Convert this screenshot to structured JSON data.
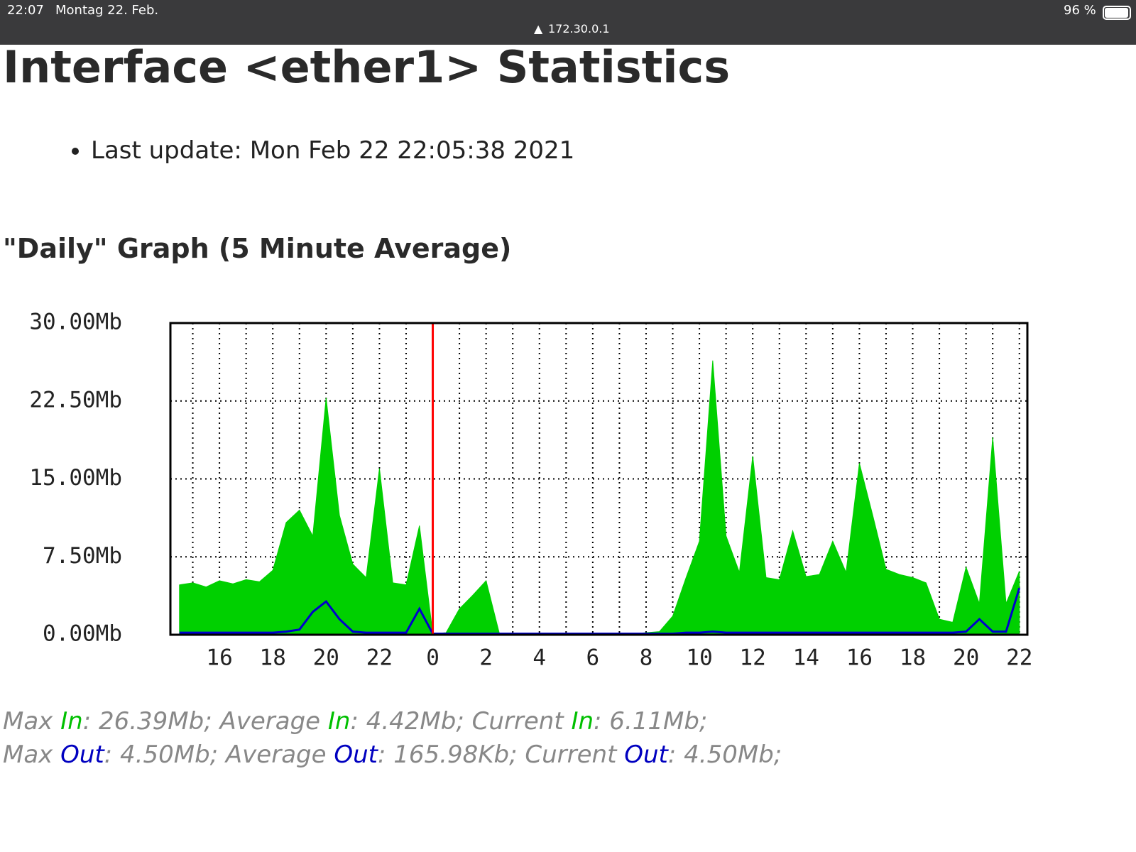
{
  "status_bar": {
    "time": "22:07",
    "date": "Montag 22. Feb.",
    "url": "172.30.0.1",
    "battery": "96 %"
  },
  "title": "Interface <ether1> Statistics",
  "last_update": "Last update: Mon Feb 22 22:05:38 2021",
  "graph_heading": "\"Daily\" Graph (5 Minute Average)",
  "chart_data": {
    "type": "area",
    "x": [
      14.5,
      15,
      15.5,
      16,
      16.5,
      17,
      17.5,
      18,
      18.5,
      19,
      19.5,
      20,
      20.5,
      21,
      21.5,
      22,
      22.5,
      23,
      23.5,
      24,
      24.5,
      25,
      25.5,
      26,
      26.5,
      27,
      27.5,
      28,
      28.5,
      29,
      29.5,
      30,
      30.5,
      31,
      31.5,
      32,
      32.5,
      33,
      33.5,
      34,
      34.5,
      35,
      35.5,
      36,
      36.5,
      37,
      37.5,
      38,
      38.5,
      39,
      39.5,
      40,
      40.5,
      41,
      41.5,
      42,
      42.5,
      43,
      43.5,
      44,
      44.5,
      45,
      45.5,
      46
    ],
    "series": [
      {
        "name": "In",
        "color": "#00d000",
        "values": [
          4.8,
          5.0,
          4.6,
          5.2,
          4.9,
          5.3,
          5.1,
          6.2,
          10.8,
          12.0,
          9.5,
          22.8,
          11.5,
          6.8,
          5.5,
          16.0,
          5.0,
          4.8,
          10.5,
          0.1,
          0.2,
          2.5,
          3.8,
          5.2,
          0.1,
          0.1,
          0.1,
          0.1,
          0.1,
          0.1,
          0.1,
          0.1,
          0.1,
          0.1,
          0.1,
          0.2,
          0.3,
          1.8,
          5.5,
          9.0,
          26.39,
          9.5,
          6.0,
          17.2,
          5.5,
          5.3,
          10.0,
          5.6,
          5.8,
          9.0,
          6.0,
          16.5,
          11.5,
          6.3,
          5.8,
          5.5,
          5.0,
          1.5,
          1.2,
          6.5,
          3.0,
          19.0,
          3.0,
          6.11
        ]
      },
      {
        "name": "Out",
        "color": "#0000cc",
        "values": [
          0.2,
          0.2,
          0.2,
          0.2,
          0.2,
          0.2,
          0.2,
          0.2,
          0.3,
          0.5,
          2.2,
          3.2,
          1.5,
          0.3,
          0.2,
          0.2,
          0.2,
          0.2,
          2.5,
          0.1,
          0.1,
          0.1,
          0.1,
          0.1,
          0.1,
          0.1,
          0.1,
          0.1,
          0.1,
          0.1,
          0.1,
          0.1,
          0.1,
          0.1,
          0.1,
          0.1,
          0.1,
          0.1,
          0.2,
          0.2,
          0.3,
          0.2,
          0.2,
          0.2,
          0.2,
          0.2,
          0.2,
          0.2,
          0.2,
          0.2,
          0.2,
          0.2,
          0.2,
          0.2,
          0.2,
          0.2,
          0.2,
          0.2,
          0.2,
          0.3,
          1.5,
          0.3,
          0.3,
          4.5
        ]
      }
    ],
    "xlim": [
      14.16,
      46.3
    ],
    "xticks": [
      16,
      18,
      20,
      22,
      {
        "value": 24,
        "label": "0"
      },
      {
        "value": 26,
        "label": "2"
      },
      {
        "value": 28,
        "label": "4"
      },
      {
        "value": 30,
        "label": "6"
      },
      {
        "value": 32,
        "label": "8"
      },
      {
        "value": 34,
        "label": "10"
      },
      {
        "value": 36,
        "label": "12"
      },
      {
        "value": 38,
        "label": "14"
      },
      {
        "value": 40,
        "label": "16"
      },
      {
        "value": 42,
        "label": "18"
      },
      {
        "value": 44,
        "label": "20"
      },
      {
        "value": 46,
        "label": "22"
      }
    ],
    "ylim": [
      0,
      30
    ],
    "yticks": [
      {
        "value": 0,
        "label": "0.00Mb"
      },
      {
        "value": 7.5,
        "label": "7.50Mb"
      },
      {
        "value": 15,
        "label": "15.00Mb"
      },
      {
        "value": 22.5,
        "label": "22.50Mb"
      },
      {
        "value": 30,
        "label": "30.00Mb"
      }
    ],
    "grid": true,
    "vline": {
      "x": 24,
      "color": "#ff0000"
    }
  },
  "stats": {
    "in_line": [
      "Max ",
      "In",
      ": 26.39Mb; Average ",
      "In",
      ": 4.42Mb; Current ",
      "In",
      ": 6.11Mb;"
    ],
    "out_line": [
      "Max ",
      "Out",
      ": 4.50Mb; Average ",
      "Out",
      ": 165.98Kb; Current ",
      "Out",
      ": 4.50Mb;"
    ]
  }
}
